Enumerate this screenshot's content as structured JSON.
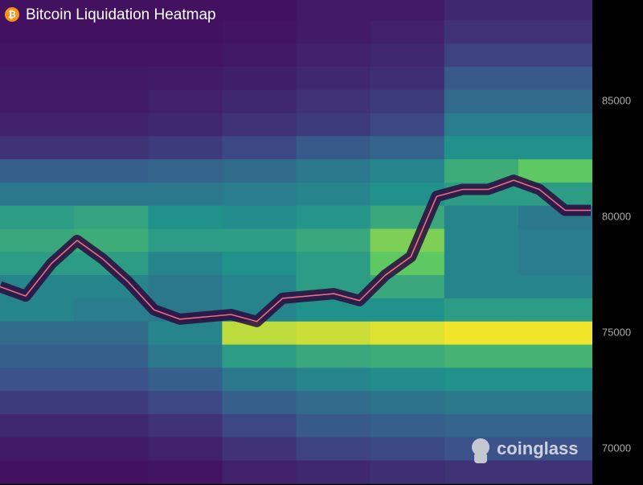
{
  "chart_data": {
    "type": "heatmap",
    "title": "Bitcoin Liquidation Heatmap",
    "title_icon": "₿",
    "watermark": "coinglass",
    "colormap": "viridis",
    "zlim": [
      0,
      1
    ],
    "ylim": [
      68440,
      89380
    ],
    "yticks": [
      70000,
      75000,
      80000,
      85000
    ],
    "y": [
      89000,
      88000,
      87000,
      86000,
      85000,
      84000,
      83000,
      82000,
      81000,
      80000,
      79000,
      78000,
      77000,
      76000,
      75000,
      74000,
      73000,
      72000,
      71000,
      70000,
      69000
    ],
    "z": [
      [
        0.05,
        0.05,
        0.05,
        0.05,
        0.08,
        0.08,
        0.12,
        0.12
      ],
      [
        0.05,
        0.05,
        0.05,
        0.06,
        0.08,
        0.1,
        0.15,
        0.15
      ],
      [
        0.06,
        0.06,
        0.06,
        0.07,
        0.1,
        0.12,
        0.2,
        0.2
      ],
      [
        0.07,
        0.07,
        0.08,
        0.09,
        0.12,
        0.14,
        0.28,
        0.28
      ],
      [
        0.08,
        0.08,
        0.1,
        0.12,
        0.15,
        0.18,
        0.35,
        0.35
      ],
      [
        0.1,
        0.1,
        0.12,
        0.15,
        0.18,
        0.22,
        0.42,
        0.42
      ],
      [
        0.15,
        0.15,
        0.18,
        0.22,
        0.28,
        0.32,
        0.5,
        0.5
      ],
      [
        0.3,
        0.3,
        0.32,
        0.35,
        0.4,
        0.45,
        0.62,
        0.75
      ],
      [
        0.4,
        0.4,
        0.4,
        0.42,
        0.45,
        0.5,
        0.55,
        0.55
      ],
      [
        0.55,
        0.58,
        0.5,
        0.48,
        0.52,
        0.6,
        0.45,
        0.4
      ],
      [
        0.6,
        0.62,
        0.55,
        0.55,
        0.6,
        0.8,
        0.45,
        0.42
      ],
      [
        0.55,
        0.55,
        0.45,
        0.5,
        0.55,
        0.75,
        0.45,
        0.42
      ],
      [
        0.45,
        0.45,
        0.4,
        0.45,
        0.55,
        0.6,
        0.45,
        0.45
      ],
      [
        0.45,
        0.42,
        0.4,
        0.45,
        0.5,
        0.5,
        0.55,
        0.55
      ],
      [
        0.35,
        0.35,
        0.45,
        0.9,
        0.92,
        0.95,
        0.98,
        0.98
      ],
      [
        0.3,
        0.3,
        0.4,
        0.55,
        0.6,
        0.62,
        0.65,
        0.65
      ],
      [
        0.25,
        0.25,
        0.3,
        0.4,
        0.45,
        0.48,
        0.5,
        0.5
      ],
      [
        0.18,
        0.18,
        0.22,
        0.3,
        0.35,
        0.38,
        0.4,
        0.4
      ],
      [
        0.12,
        0.12,
        0.15,
        0.22,
        0.28,
        0.3,
        0.32,
        0.32
      ],
      [
        0.08,
        0.08,
        0.1,
        0.15,
        0.2,
        0.22,
        0.25,
        0.25
      ],
      [
        0.05,
        0.05,
        0.06,
        0.1,
        0.12,
        0.14,
        0.15,
        0.15
      ]
    ],
    "price": {
      "color": "#ff6b8a",
      "values": [
        77000,
        76600,
        78000,
        79000,
        78200,
        77200,
        76000,
        75600,
        75700,
        75800,
        75500,
        76500,
        76600,
        76700,
        76400,
        77500,
        78300,
        80900,
        81200,
        81200,
        81600,
        81200,
        80300,
        80300
      ]
    }
  }
}
